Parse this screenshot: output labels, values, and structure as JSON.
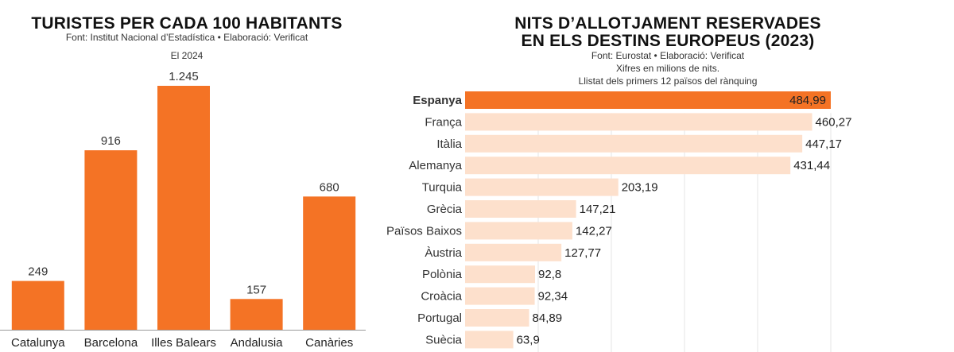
{
  "colors": {
    "accent": "#f47325",
    "light_bar": "#fde0cc",
    "grid": "#e6e6e6"
  },
  "left": {
    "title": "TURISTES PER CADA 100 HABITANTS",
    "source": "Font: Institut Nacional d’Estadística • Elaboració: Verificat",
    "note": "El 2024"
  },
  "right": {
    "title_line1": "NITS D’ALLOTJAMENT RESERVADES",
    "title_line2": "EN ELS DESTINS EUROPEUS (2023)",
    "source": "Font: Eurostat • Elaboració: Verificat",
    "note1": "Xifres en milions de nits.",
    "note2": "Llistat dels primers 12 països del rànquing"
  },
  "chart_data": [
    {
      "type": "bar",
      "title": "TURISTES PER CADA 100 HABITANTS",
      "categories": [
        "Catalunya",
        "Barcelona",
        "Illes Balears",
        "Andalusia",
        "Canàries"
      ],
      "values": [
        249,
        916,
        1245,
        157,
        680
      ],
      "value_labels": [
        "249",
        "916",
        "1.245",
        "157",
        "680"
      ],
      "ylim": [
        0,
        1300
      ],
      "grid": false,
      "xlabel": "",
      "ylabel": ""
    },
    {
      "type": "bar",
      "orientation": "horizontal",
      "title": "NITS D’ALLOTJAMENT RESERVADES EN ELS DESTINS EUROPEUS (2023)",
      "categories": [
        "Espanya",
        "França",
        "Itàlia",
        "Alemanya",
        "Turquia",
        "Grècia",
        "Països Baixos",
        "Àustria",
        "Polònia",
        "Croàcia",
        "Portugal",
        "Suècia"
      ],
      "values": [
        484.99,
        460.27,
        447.17,
        431.44,
        203.19,
        147.21,
        142.27,
        127.77,
        92.8,
        92.34,
        84.89,
        63.9
      ],
      "value_labels": [
        "484,99",
        "460,27",
        "447,17",
        "431,44",
        "203,19",
        "147,21",
        "142,27",
        "127,77",
        "92,8",
        "92,34",
        "84,89",
        "63,9"
      ],
      "highlight": "Espanya",
      "xlim": [
        0,
        500
      ],
      "grid": true,
      "xlabel": "",
      "ylabel": ""
    }
  ]
}
